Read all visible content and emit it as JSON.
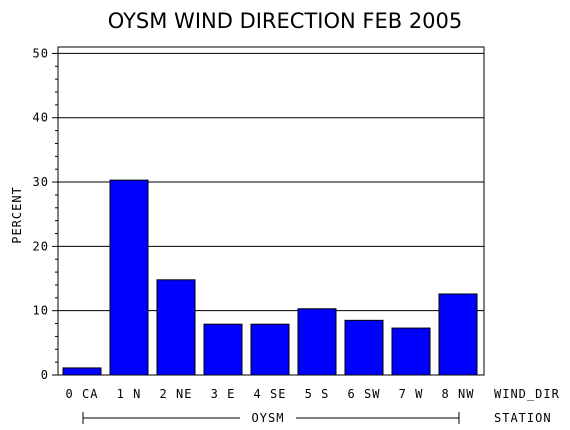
{
  "chart_data": {
    "type": "bar",
    "title": "OYSM WIND DIRECTION FEB 2005",
    "ylabel": "PERCENT",
    "xlabel": "WIND_DIR",
    "group_label_title": "STATION",
    "group_label": "OYSM",
    "categories": [
      "0 CA",
      "1 N",
      "2 NE",
      "3 E",
      "4 SE",
      "5 S",
      "6 SW",
      "7 W",
      "8 NW"
    ],
    "values": [
      1.1,
      30.3,
      14.8,
      7.9,
      7.9,
      10.3,
      8.5,
      7.3,
      12.6
    ],
    "ylim": [
      0,
      51
    ],
    "yticks": [
      0,
      10,
      20,
      30,
      40,
      50
    ],
    "grid": true,
    "bar_color": "#0000ff"
  }
}
